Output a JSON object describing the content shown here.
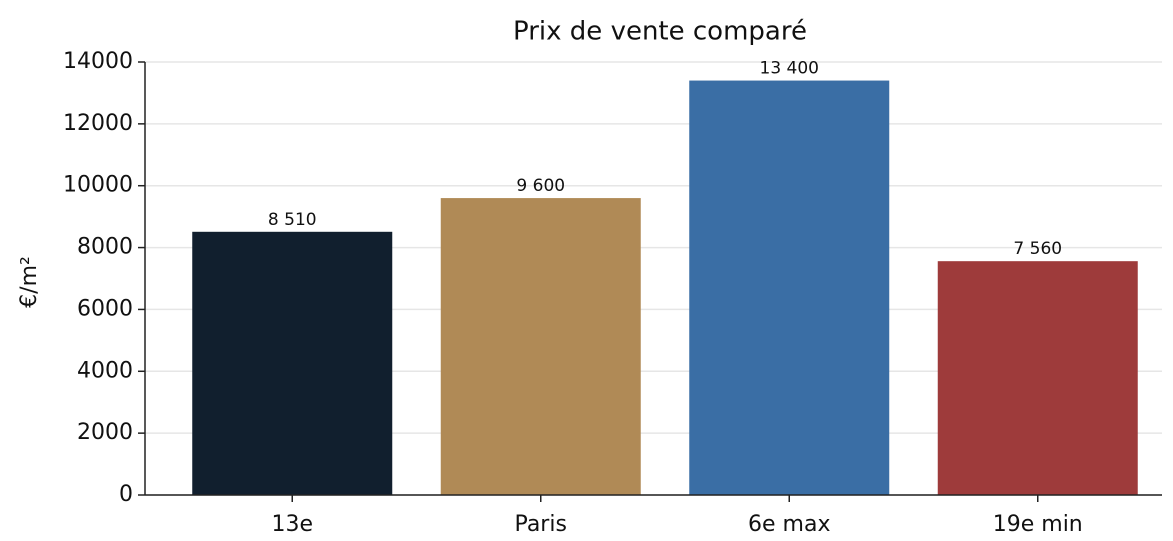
{
  "chart_data": {
    "type": "bar",
    "title": "Prix de vente comparé",
    "ylabel": "€/m²",
    "categories": [
      "13e",
      "Paris",
      "6e max",
      "19e min"
    ],
    "values": [
      8510,
      9600,
      13400,
      7560
    ],
    "value_labels": [
      "8 510",
      "9 600",
      "13 400",
      "7 560"
    ],
    "colors": [
      "#111f2e",
      "#b08a56",
      "#3a6ea5",
      "#9e3b3b"
    ],
    "ylim": [
      0,
      14000
    ],
    "yticks": [
      0,
      2000,
      4000,
      6000,
      8000,
      10000,
      12000,
      14000
    ],
    "grid": true
  }
}
